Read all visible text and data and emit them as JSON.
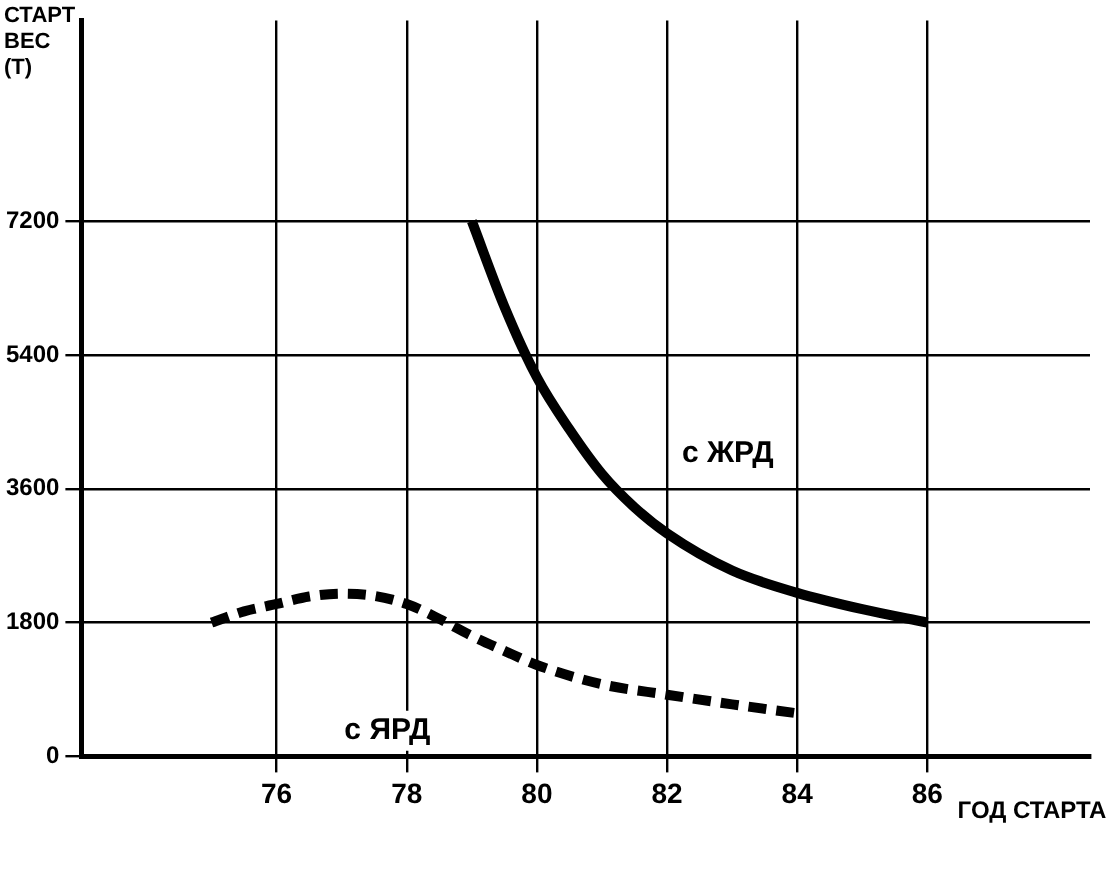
{
  "chart_data": {
    "type": "line",
    "xlabel": "ГОД СТАРТА",
    "ylabel": "СТАРТ ВЕС (Т)",
    "xlim": [
      73,
      88.5
    ],
    "xticks": [
      76,
      78,
      80,
      82,
      84,
      86
    ],
    "ylim": [
      0,
      9900
    ],
    "yticks": [
      0,
      1800,
      3600,
      5400,
      7200
    ],
    "grid": true,
    "legend": false,
    "marker": "none",
    "series": [
      {
        "name": "с ЖРД",
        "color": "#000000",
        "line_style": "solid",
        "x": [
          79,
          79.5,
          80,
          80.5,
          81,
          81.5,
          82,
          83,
          84,
          85,
          86
        ],
        "values": [
          7200,
          6050,
          5100,
          4400,
          3800,
          3350,
          3000,
          2500,
          2200,
          1980,
          1800
        ]
      },
      {
        "name": "с ЯРД",
        "color": "#000000",
        "line_style": "dashed",
        "x": [
          75,
          75.5,
          76,
          76.5,
          77,
          77.5,
          78,
          78.5,
          79,
          79.5,
          80,
          81,
          82,
          83,
          84
        ],
        "values": [
          1800,
          1950,
          2050,
          2150,
          2190,
          2160,
          2050,
          1850,
          1620,
          1420,
          1230,
          970,
          830,
          700,
          580
        ]
      }
    ]
  }
}
